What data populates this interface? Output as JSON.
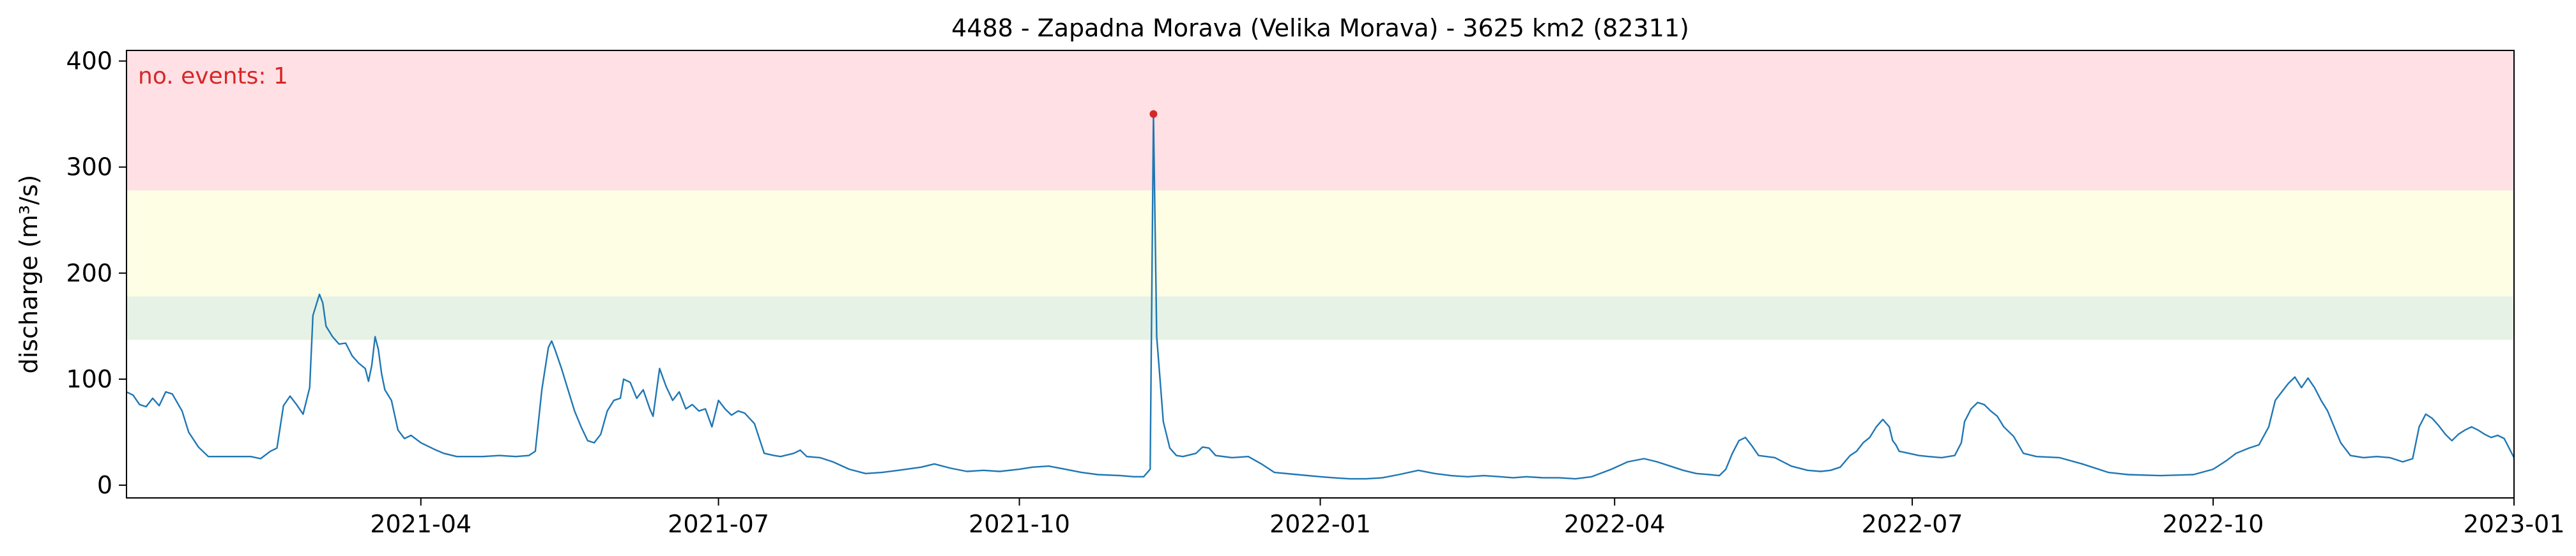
{
  "chart_data": {
    "type": "line",
    "title": "4488 - Zapadna Morava (Velika Morava) - 3625 km2 (82311)",
    "xlabel": "",
    "ylabel": "discharge (m³/s)",
    "annotation": "no. events: 1",
    "xlim": [
      "2021-01-01",
      "2023-01-01"
    ],
    "ylim": [
      -12,
      410
    ],
    "x_ticks": [
      {
        "date": "2021-04-01",
        "label": "2021-04"
      },
      {
        "date": "2021-07-01",
        "label": "2021-07"
      },
      {
        "date": "2021-10-01",
        "label": "2021-10"
      },
      {
        "date": "2022-01-01",
        "label": "2022-01"
      },
      {
        "date": "2022-04-01",
        "label": "2022-04"
      },
      {
        "date": "2022-07-01",
        "label": "2022-07"
      },
      {
        "date": "2022-10-01",
        "label": "2022-10"
      },
      {
        "date": "2023-01-01",
        "label": "2023-01"
      }
    ],
    "y_ticks": [
      0,
      100,
      200,
      300,
      400
    ],
    "bands": [
      {
        "from": 137,
        "to": 178,
        "color": "#e5f2e5"
      },
      {
        "from": 178,
        "to": 278,
        "color": "#fefee5"
      },
      {
        "from": 278,
        "to": 410,
        "color": "#ffe0e4"
      }
    ],
    "colors": {
      "line": "#1f77b4",
      "event": "#d62728",
      "annotation": "#d62728"
    },
    "series": [
      {
        "points": [
          [
            "2021-01-01",
            88
          ],
          [
            "2021-01-03",
            85
          ],
          [
            "2021-01-05",
            76
          ],
          [
            "2021-01-07",
            74
          ],
          [
            "2021-01-09",
            82
          ],
          [
            "2021-01-11",
            75
          ],
          [
            "2021-01-13",
            88
          ],
          [
            "2021-01-15",
            86
          ],
          [
            "2021-01-18",
            70
          ],
          [
            "2021-01-20",
            50
          ],
          [
            "2021-01-23",
            36
          ],
          [
            "2021-01-26",
            27
          ],
          [
            "2021-02-01",
            27
          ],
          [
            "2021-02-08",
            27
          ],
          [
            "2021-02-11",
            25
          ],
          [
            "2021-02-14",
            32
          ],
          [
            "2021-02-16",
            35
          ],
          [
            "2021-02-18",
            75
          ],
          [
            "2021-02-20",
            84
          ],
          [
            "2021-02-22",
            76
          ],
          [
            "2021-02-24",
            67
          ],
          [
            "2021-02-26",
            92
          ],
          [
            "2021-02-27",
            160
          ],
          [
            "2021-02-28",
            170
          ],
          [
            "2021-03-01",
            180
          ],
          [
            "2021-03-02",
            172
          ],
          [
            "2021-03-03",
            150
          ],
          [
            "2021-03-05",
            140
          ],
          [
            "2021-03-07",
            133
          ],
          [
            "2021-03-09",
            134
          ],
          [
            "2021-03-11",
            122
          ],
          [
            "2021-03-13",
            115
          ],
          [
            "2021-03-15",
            110
          ],
          [
            "2021-03-16",
            98
          ],
          [
            "2021-03-17",
            113
          ],
          [
            "2021-03-18",
            140
          ],
          [
            "2021-03-19",
            128
          ],
          [
            "2021-03-20",
            105
          ],
          [
            "2021-03-21",
            90
          ],
          [
            "2021-03-23",
            80
          ],
          [
            "2021-03-25",
            52
          ],
          [
            "2021-03-27",
            44
          ],
          [
            "2021-03-29",
            47
          ],
          [
            "2021-04-01",
            40
          ],
          [
            "2021-04-05",
            34
          ],
          [
            "2021-04-08",
            30
          ],
          [
            "2021-04-12",
            27
          ],
          [
            "2021-04-20",
            27
          ],
          [
            "2021-04-25",
            28
          ],
          [
            "2021-04-30",
            27
          ],
          [
            "2021-05-04",
            28
          ],
          [
            "2021-05-06",
            32
          ],
          [
            "2021-05-08",
            90
          ],
          [
            "2021-05-10",
            130
          ],
          [
            "2021-05-11",
            136
          ],
          [
            "2021-05-12",
            128
          ],
          [
            "2021-05-14",
            110
          ],
          [
            "2021-05-16",
            90
          ],
          [
            "2021-05-18",
            70
          ],
          [
            "2021-05-20",
            55
          ],
          [
            "2021-05-22",
            42
          ],
          [
            "2021-05-24",
            40
          ],
          [
            "2021-05-26",
            48
          ],
          [
            "2021-05-28",
            70
          ],
          [
            "2021-05-30",
            80
          ],
          [
            "2021-06-01",
            82
          ],
          [
            "2021-06-02",
            100
          ],
          [
            "2021-06-04",
            97
          ],
          [
            "2021-06-06",
            82
          ],
          [
            "2021-06-08",
            90
          ],
          [
            "2021-06-10",
            72
          ],
          [
            "2021-06-11",
            65
          ],
          [
            "2021-06-13",
            110
          ],
          [
            "2021-06-15",
            93
          ],
          [
            "2021-06-17",
            80
          ],
          [
            "2021-06-19",
            88
          ],
          [
            "2021-06-21",
            72
          ],
          [
            "2021-06-23",
            76
          ],
          [
            "2021-06-25",
            70
          ],
          [
            "2021-06-27",
            72
          ],
          [
            "2021-06-29",
            55
          ],
          [
            "2021-07-01",
            80
          ],
          [
            "2021-07-03",
            72
          ],
          [
            "2021-07-05",
            66
          ],
          [
            "2021-07-07",
            70
          ],
          [
            "2021-07-09",
            68
          ],
          [
            "2021-07-12",
            58
          ],
          [
            "2021-07-15",
            30
          ],
          [
            "2021-07-18",
            28
          ],
          [
            "2021-07-20",
            27
          ],
          [
            "2021-07-24",
            30
          ],
          [
            "2021-07-26",
            33
          ],
          [
            "2021-07-28",
            27
          ],
          [
            "2021-08-01",
            26
          ],
          [
            "2021-08-05",
            22
          ],
          [
            "2021-08-10",
            15
          ],
          [
            "2021-08-15",
            11
          ],
          [
            "2021-08-20",
            12
          ],
          [
            "2021-08-25",
            14
          ],
          [
            "2021-09-01",
            17
          ],
          [
            "2021-09-05",
            20
          ],
          [
            "2021-09-10",
            16
          ],
          [
            "2021-09-15",
            13
          ],
          [
            "2021-09-20",
            14
          ],
          [
            "2021-09-25",
            13
          ],
          [
            "2021-10-01",
            15
          ],
          [
            "2021-10-05",
            17
          ],
          [
            "2021-10-10",
            18
          ],
          [
            "2021-10-15",
            15
          ],
          [
            "2021-10-20",
            12
          ],
          [
            "2021-10-25",
            10
          ],
          [
            "2021-11-01",
            9
          ],
          [
            "2021-11-05",
            8
          ],
          [
            "2021-11-08",
            8
          ],
          [
            "2021-11-10",
            15
          ],
          [
            "2021-11-11",
            350
          ],
          [
            "2021-11-12",
            140
          ],
          [
            "2021-11-13",
            100
          ],
          [
            "2021-11-14",
            60
          ],
          [
            "2021-11-16",
            35
          ],
          [
            "2021-11-18",
            28
          ],
          [
            "2021-11-20",
            27
          ],
          [
            "2021-11-24",
            30
          ],
          [
            "2021-11-26",
            36
          ],
          [
            "2021-11-28",
            35
          ],
          [
            "2021-11-30",
            28
          ],
          [
            "2021-12-05",
            26
          ],
          [
            "2021-12-10",
            27
          ],
          [
            "2021-12-14",
            20
          ],
          [
            "2021-12-18",
            12
          ],
          [
            "2021-12-25",
            10
          ],
          [
            "2022-01-01",
            8
          ],
          [
            "2022-01-05",
            7
          ],
          [
            "2022-01-10",
            6
          ],
          [
            "2022-01-15",
            6
          ],
          [
            "2022-01-20",
            7
          ],
          [
            "2022-01-25",
            10
          ],
          [
            "2022-01-31",
            14
          ],
          [
            "2022-02-05",
            11
          ],
          [
            "2022-02-10",
            9
          ],
          [
            "2022-02-15",
            8
          ],
          [
            "2022-02-20",
            9
          ],
          [
            "2022-02-25",
            8
          ],
          [
            "2022-03-01",
            7
          ],
          [
            "2022-03-05",
            8
          ],
          [
            "2022-03-10",
            7
          ],
          [
            "2022-03-15",
            7
          ],
          [
            "2022-03-20",
            6
          ],
          [
            "2022-03-25",
            8
          ],
          [
            "2022-03-31",
            15
          ],
          [
            "2022-04-05",
            22
          ],
          [
            "2022-04-10",
            25
          ],
          [
            "2022-04-14",
            22
          ],
          [
            "2022-04-18",
            18
          ],
          [
            "2022-04-22",
            14
          ],
          [
            "2022-04-26",
            11
          ],
          [
            "2022-04-30",
            10
          ],
          [
            "2022-05-03",
            9
          ],
          [
            "2022-05-05",
            15
          ],
          [
            "2022-05-07",
            30
          ],
          [
            "2022-05-09",
            42
          ],
          [
            "2022-05-11",
            45
          ],
          [
            "2022-05-13",
            37
          ],
          [
            "2022-05-15",
            28
          ],
          [
            "2022-05-20",
            26
          ],
          [
            "2022-05-25",
            18
          ],
          [
            "2022-05-30",
            14
          ],
          [
            "2022-06-03",
            13
          ],
          [
            "2022-06-06",
            14
          ],
          [
            "2022-06-09",
            17
          ],
          [
            "2022-06-12",
            28
          ],
          [
            "2022-06-14",
            32
          ],
          [
            "2022-06-16",
            40
          ],
          [
            "2022-06-18",
            45
          ],
          [
            "2022-06-20",
            55
          ],
          [
            "2022-06-22",
            62
          ],
          [
            "2022-06-24",
            55
          ],
          [
            "2022-06-25",
            42
          ],
          [
            "2022-06-26",
            38
          ],
          [
            "2022-06-27",
            32
          ],
          [
            "2022-06-30",
            30
          ],
          [
            "2022-07-03",
            28
          ],
          [
            "2022-07-06",
            27
          ],
          [
            "2022-07-10",
            26
          ],
          [
            "2022-07-14",
            28
          ],
          [
            "2022-07-16",
            40
          ],
          [
            "2022-07-17",
            60
          ],
          [
            "2022-07-19",
            72
          ],
          [
            "2022-07-21",
            78
          ],
          [
            "2022-07-23",
            76
          ],
          [
            "2022-07-25",
            70
          ],
          [
            "2022-07-27",
            65
          ],
          [
            "2022-07-29",
            55
          ],
          [
            "2022-08-01",
            46
          ],
          [
            "2022-08-04",
            30
          ],
          [
            "2022-08-08",
            27
          ],
          [
            "2022-08-15",
            26
          ],
          [
            "2022-08-22",
            20
          ],
          [
            "2022-08-30",
            12
          ],
          [
            "2022-09-05",
            10
          ],
          [
            "2022-09-15",
            9
          ],
          [
            "2022-09-25",
            10
          ],
          [
            "2022-10-01",
            15
          ],
          [
            "2022-10-05",
            23
          ],
          [
            "2022-10-08",
            30
          ],
          [
            "2022-10-12",
            35
          ],
          [
            "2022-10-15",
            38
          ],
          [
            "2022-10-18",
            55
          ],
          [
            "2022-10-20",
            80
          ],
          [
            "2022-10-22",
            88
          ],
          [
            "2022-10-24",
            96
          ],
          [
            "2022-10-26",
            102
          ],
          [
            "2022-10-28",
            92
          ],
          [
            "2022-10-30",
            101
          ],
          [
            "2022-11-01",
            92
          ],
          [
            "2022-11-03",
            80
          ],
          [
            "2022-11-05",
            70
          ],
          [
            "2022-11-07",
            55
          ],
          [
            "2022-11-09",
            40
          ],
          [
            "2022-11-12",
            28
          ],
          [
            "2022-11-16",
            26
          ],
          [
            "2022-11-20",
            27
          ],
          [
            "2022-11-24",
            26
          ],
          [
            "2022-11-28",
            22
          ],
          [
            "2022-12-01",
            25
          ],
          [
            "2022-12-03",
            55
          ],
          [
            "2022-12-05",
            67
          ],
          [
            "2022-12-07",
            63
          ],
          [
            "2022-12-09",
            56
          ],
          [
            "2022-12-11",
            48
          ],
          [
            "2022-12-13",
            42
          ],
          [
            "2022-12-15",
            48
          ],
          [
            "2022-12-17",
            52
          ],
          [
            "2022-12-19",
            55
          ],
          [
            "2022-12-21",
            52
          ],
          [
            "2022-12-23",
            48
          ],
          [
            "2022-12-25",
            45
          ],
          [
            "2022-12-27",
            47
          ],
          [
            "2022-12-29",
            44
          ],
          [
            "2023-01-01",
            26
          ]
        ]
      }
    ],
    "events": [
      [
        "2021-11-11",
        350
      ]
    ]
  }
}
